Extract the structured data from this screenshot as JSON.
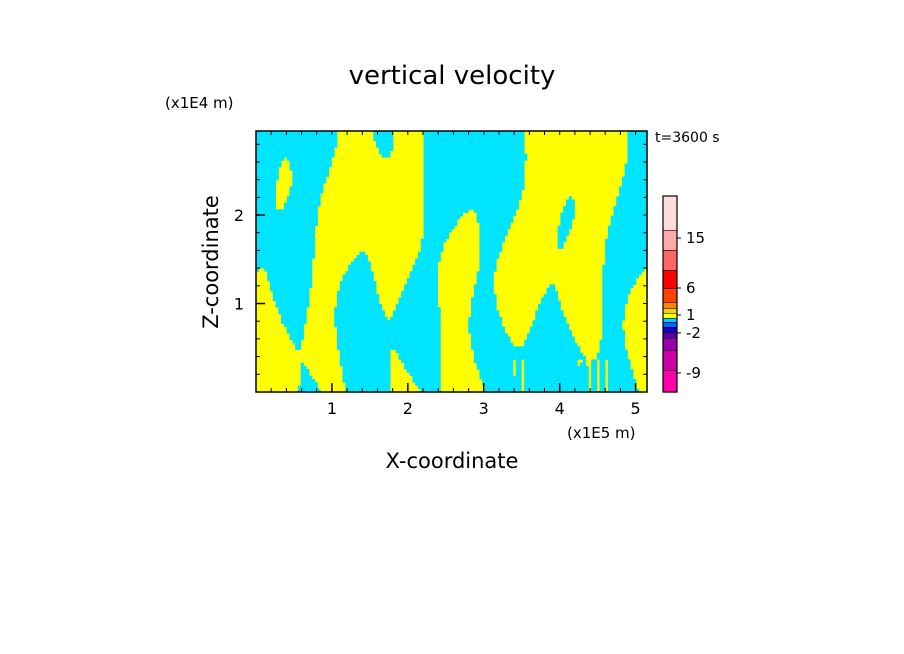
{
  "chart_data": {
    "type": "heatmap",
    "title": "vertical velocity",
    "xlabel": "X-coordinate",
    "ylabel": "Z-coordinate",
    "x_unit": "(x1E5 m)",
    "y_unit": "(x1E4 m)",
    "time_label": "t=3600 s",
    "xlim": [
      0,
      5.15
    ],
    "ylim": [
      0,
      2.95
    ],
    "x_ticks": [
      "1",
      "2",
      "3",
      "4",
      "5"
    ],
    "x_tick_values": [
      1,
      2,
      3,
      4,
      5
    ],
    "y_ticks": [
      "1",
      "2"
    ],
    "y_tick_values": [
      1,
      2
    ],
    "colors": {
      "positive": "#ffff00",
      "negative": "#00e5ff"
    },
    "colorbar": {
      "labels": [
        "15",
        "6",
        "1",
        "-2",
        "-9"
      ],
      "segments": [
        "#ff00aa",
        "#cc00aa",
        "#9900aa",
        "#5500aa",
        "#1a00cc",
        "#0066ff",
        "#00ccff",
        "#ffff00",
        "#ffcc00",
        "#ff8800",
        "#ff4400",
        "#ff0000",
        "#ff6666",
        "#ffaaaa",
        "#ffdddd"
      ]
    }
  }
}
